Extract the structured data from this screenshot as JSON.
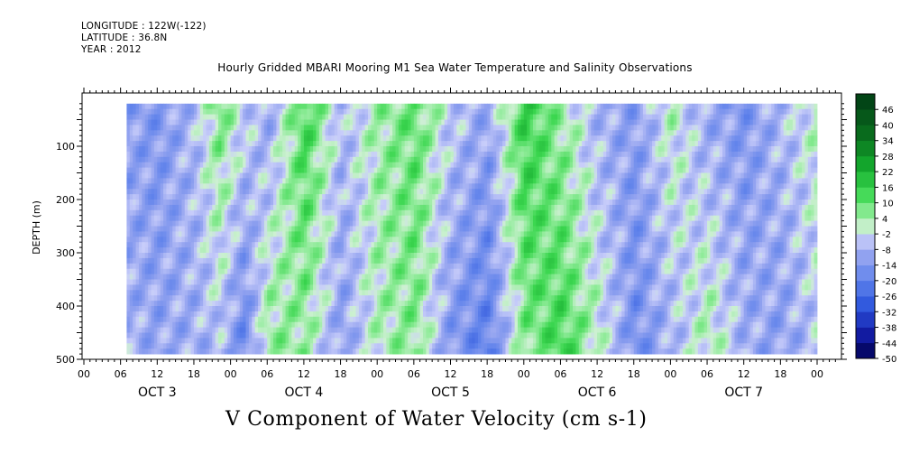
{
  "header": {
    "longitude": "LONGITUDE : 122W(-122)",
    "latitude": "LATITUDE : 36.8N",
    "year": "YEAR : 2012"
  },
  "chart_data": {
    "type": "heatmap",
    "title": "Hourly Gridded MBARI Mooring M1 Sea Water Temperature and Salinity Observations",
    "bottom_title": "V Component of Water Velocity (cm s-1)",
    "ylabel": "DEPTH (m)",
    "ylim": [
      500,
      0
    ],
    "y_ticks": [
      "100",
      "200",
      "300",
      "400",
      "500"
    ],
    "x_hour_ticks": [
      "00",
      "06",
      "12",
      "18",
      "00",
      "06",
      "12",
      "18",
      "00",
      "06",
      "12",
      "18",
      "00",
      "06",
      "12",
      "18",
      "00",
      "06",
      "12",
      "18",
      "00"
    ],
    "x_day_labels": [
      "OCT 3",
      "OCT 4",
      "OCT 5",
      "OCT 6",
      "OCT 7"
    ],
    "colorbar_labels": [
      "46",
      "40",
      "34",
      "28",
      "22",
      "16",
      "10",
      "4",
      "-2",
      "-8",
      "-14",
      "-20",
      "-26",
      "-32",
      "-38",
      "-44",
      "-50"
    ],
    "colorbar_range": [
      -50,
      52
    ],
    "data_depth_range": [
      20,
      490
    ],
    "data_start_hour": 7,
    "data_end_hour": 120,
    "column_means_by_6h": [
      {
        "hour": 8,
        "top": -12,
        "bottom": -8
      },
      {
        "hour": 12,
        "top": -14,
        "bottom": -10
      },
      {
        "hour": 18,
        "top": -6,
        "bottom": -9
      },
      {
        "hour": 22,
        "top": 8,
        "bottom": -6
      },
      {
        "hour": 26,
        "top": -2,
        "bottom": -18
      },
      {
        "hour": 30,
        "top": -10,
        "bottom": 6
      },
      {
        "hour": 36,
        "top": 14,
        "bottom": 4
      },
      {
        "hour": 42,
        "top": -6,
        "bottom": -12
      },
      {
        "hour": 48,
        "top": 4,
        "bottom": 2
      },
      {
        "hour": 54,
        "top": 10,
        "bottom": 6
      },
      {
        "hour": 60,
        "top": -4,
        "bottom": -14
      },
      {
        "hour": 66,
        "top": -10,
        "bottom": -20
      },
      {
        "hour": 72,
        "top": 16,
        "bottom": 6
      },
      {
        "hour": 78,
        "top": 4,
        "bottom": 14
      },
      {
        "hour": 84,
        "top": -8,
        "bottom": 2
      },
      {
        "hour": 90,
        "top": -12,
        "bottom": -16
      },
      {
        "hour": 96,
        "top": 2,
        "bottom": -8
      },
      {
        "hour": 102,
        "top": -10,
        "bottom": 4
      },
      {
        "hour": 108,
        "top": -14,
        "bottom": -8
      },
      {
        "hour": 114,
        "top": -6,
        "bottom": -12
      },
      {
        "hour": 120,
        "top": 2,
        "bottom": -4
      }
    ]
  }
}
